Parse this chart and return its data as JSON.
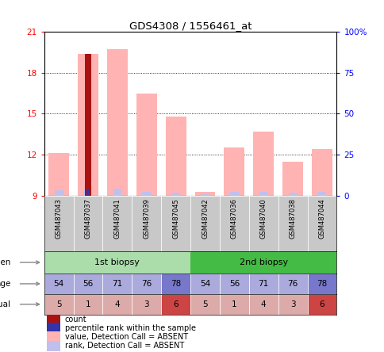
{
  "title": "GDS4308 / 1556461_at",
  "samples": [
    "GSM487043",
    "GSM487037",
    "GSM487041",
    "GSM487039",
    "GSM487045",
    "GSM487042",
    "GSM487036",
    "GSM487040",
    "GSM487038",
    "GSM487044"
  ],
  "ylim": [
    9,
    21
  ],
  "yticks": [
    9,
    12,
    15,
    18,
    21
  ],
  "pink_bar_values": [
    12.1,
    19.4,
    19.7,
    16.5,
    14.8,
    9.3,
    12.5,
    13.7,
    11.5,
    12.4
  ],
  "light_blue_bar_values": [
    9.4,
    9.45,
    9.5,
    9.3,
    9.2,
    9.1,
    9.3,
    9.3,
    9.2,
    9.3
  ],
  "dark_red_bar_value": 19.4,
  "dark_red_bar_index": 1,
  "dark_blue_bar_value": 9.5,
  "dark_blue_bar_index": 1,
  "baseline": 9,
  "pink_color": "#FFB3B3",
  "light_blue_color": "#C0C0EE",
  "dark_red_color": "#AA1111",
  "dark_blue_color": "#3333AA",
  "specimen_color_1st": "#AADDAA",
  "specimen_color_2nd": "#44BB44",
  "age_values": [
    54,
    56,
    71,
    76,
    78,
    54,
    56,
    71,
    76,
    78
  ],
  "age_color_light": "#AAAADD",
  "age_color_dark": "#7777CC",
  "age_dark_indices": [
    4,
    9
  ],
  "individual_values": [
    5,
    1,
    4,
    3,
    6,
    5,
    1,
    4,
    3,
    6
  ],
  "individual_color_light": "#DDAAAA",
  "individual_color_dark": "#CC4444",
  "individual_dark_indices": [
    4,
    9
  ],
  "legend_items": [
    {
      "color": "#AA1111",
      "label": "count"
    },
    {
      "color": "#3333AA",
      "label": "percentile rank within the sample"
    },
    {
      "color": "#FFB3B3",
      "label": "value, Detection Call = ABSENT"
    },
    {
      "color": "#C0C0EE",
      "label": "rank, Detection Call = ABSENT"
    }
  ]
}
